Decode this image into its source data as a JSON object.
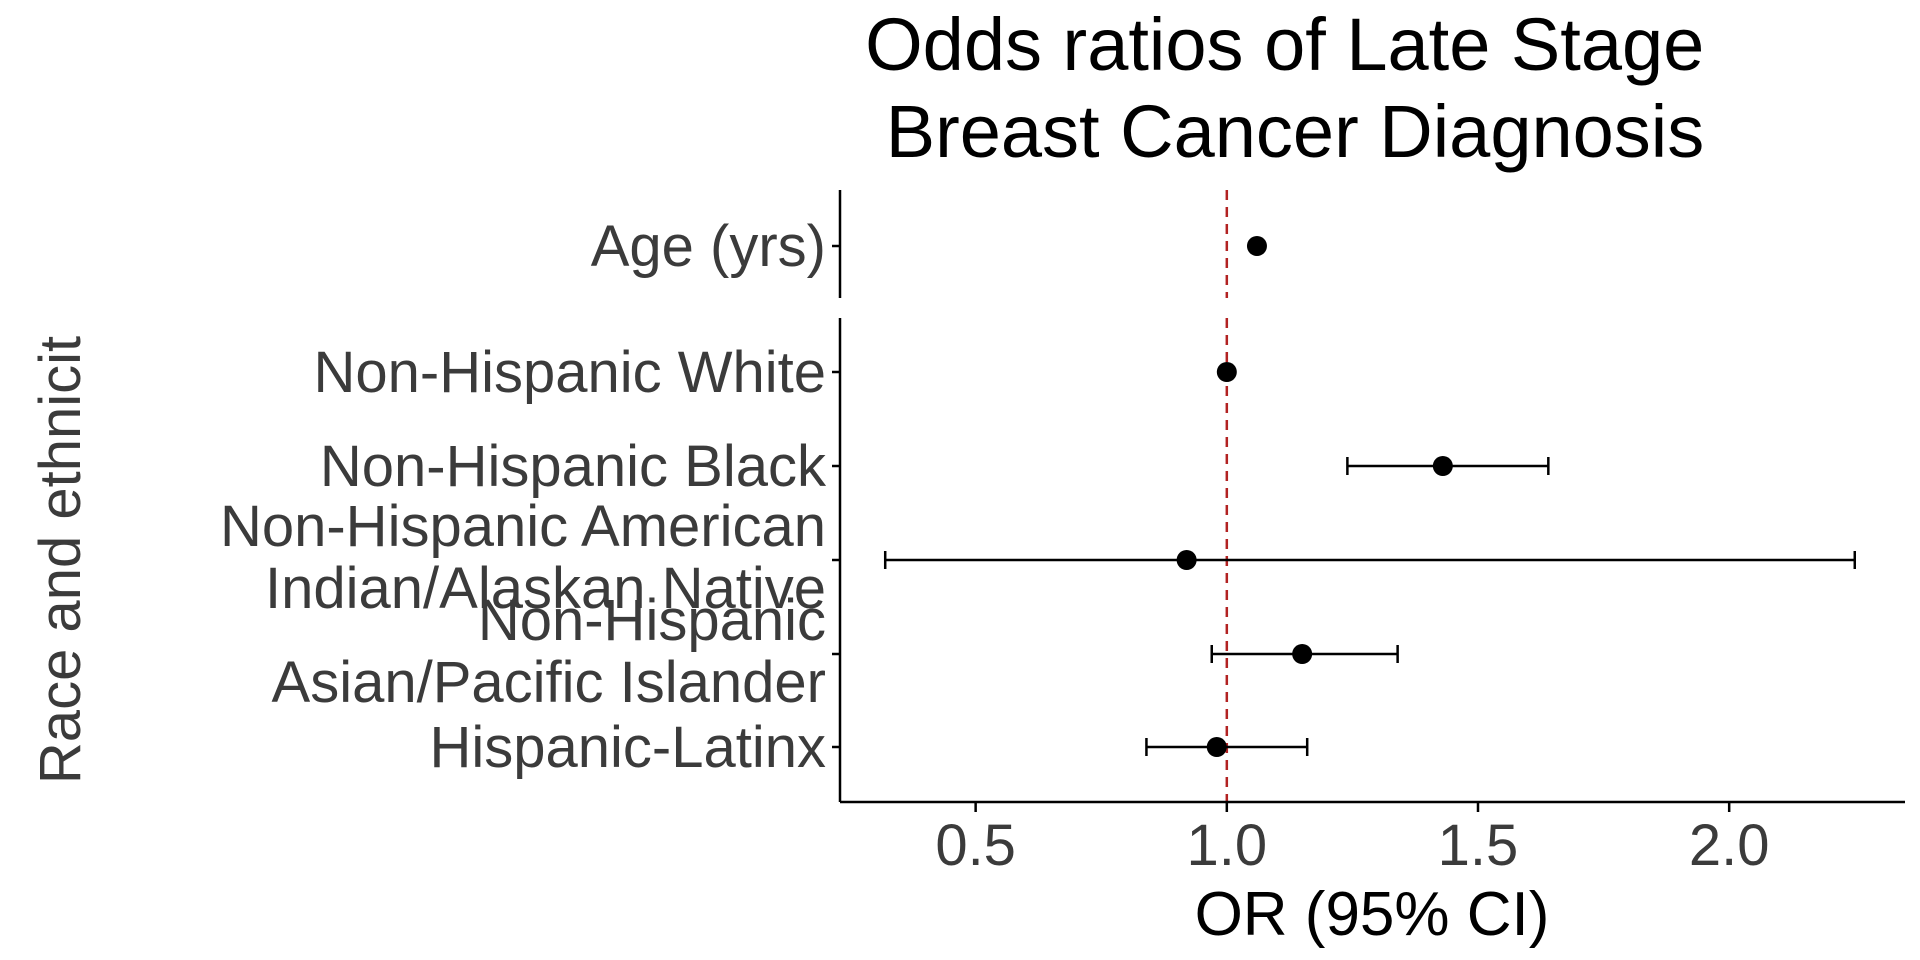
{
  "chart_data": {
    "type": "forest",
    "title": [
      "Odds ratios of Late Stage",
      "Breast Cancer Diagnosis"
    ],
    "xlabel": "OR (95% CI)",
    "ylabel": "Race and ethnicit",
    "xlim": [
      0.23,
      2.35
    ],
    "xticks": [
      0.5,
      1.0,
      1.5,
      2.0
    ],
    "xtick_labels": [
      "0.5",
      "1.0",
      "1.5",
      "2.0"
    ],
    "reference_line": 1.0,
    "grid": false,
    "panels": [
      {
        "rows": [
          {
            "label": [
              "Age (yrs)"
            ],
            "or": 1.06,
            "lower": null,
            "upper": null
          }
        ]
      },
      {
        "rows": [
          {
            "label": [
              "Non-Hispanic White"
            ],
            "or": 1.0,
            "lower": null,
            "upper": null
          },
          {
            "label": [
              "Non-Hispanic Black"
            ],
            "or": 1.43,
            "lower": 1.24,
            "upper": 1.64
          },
          {
            "label": [
              "Non-Hispanic American",
              "Indian/Alaskan Native"
            ],
            "or": 0.92,
            "lower": 0.32,
            "upper": 2.25
          },
          {
            "label": [
              "Non-Hispanic",
              "Asian/Pacific Islander"
            ],
            "or": 1.15,
            "lower": 0.97,
            "upper": 1.34
          },
          {
            "label": [
              "Hispanic-Latinx"
            ],
            "or": 0.98,
            "lower": 0.84,
            "upper": 1.16
          }
        ]
      }
    ],
    "colors": {
      "points": "#000000",
      "ref_line": "#b22222",
      "axis": "#000000",
      "text": "#3b3b3b"
    }
  }
}
